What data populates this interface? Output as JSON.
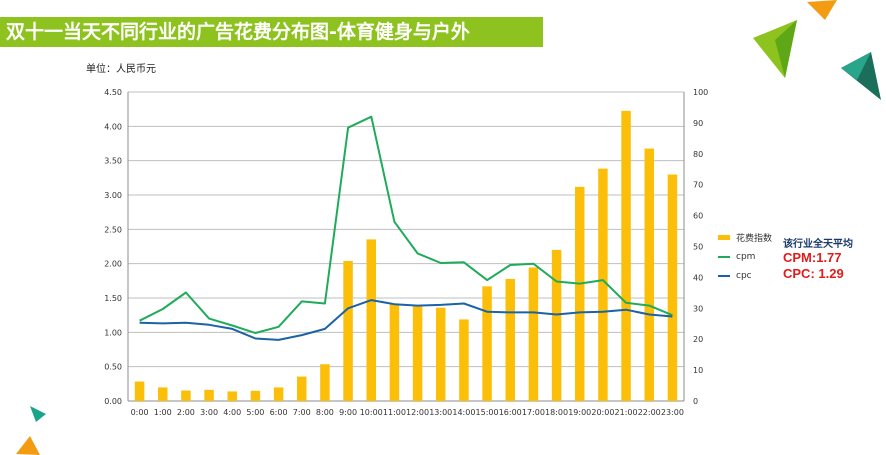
{
  "title": "双十一当天不同行业的广告花费分布图-体育健身与户外",
  "unit_label": "单位：人民币元",
  "average": {
    "title": "该行业全天平均",
    "cpm": "CPM:1.77",
    "cpc": "CPC: 1.29"
  },
  "colors": {
    "title_bg": "#8dc21f",
    "bar": "#fbbf09",
    "cpm": "#1fab5a",
    "cpc": "#1b62a6"
  },
  "chart_data": {
    "type": "bar",
    "categories": [
      "0:00",
      "1:00",
      "2:00",
      "3:00",
      "4:00",
      "5:00",
      "6:00",
      "7:00",
      "8:00",
      "9:00",
      "10:00",
      "11:00",
      "12:00",
      "13:00",
      "14:00",
      "15:00",
      "16:00",
      "17:00",
      "18:00",
      "19:00",
      "20:00",
      "21:00",
      "22:00",
      "23:00"
    ],
    "y_left": {
      "min": 0,
      "max": 4.5,
      "ticks": [
        "0.00",
        "0.50",
        "1.00",
        "1.50",
        "2.00",
        "2.50",
        "3.00",
        "3.50",
        "4.00",
        "4.50"
      ]
    },
    "y_right": {
      "min": 0,
      "max": 100,
      "ticks": [
        "0",
        "10",
        "20",
        "30",
        "40",
        "50",
        "60",
        "70",
        "80",
        "90",
        "100"
      ]
    },
    "grid": true,
    "legend_position": "right",
    "series": [
      {
        "name": "花费指数",
        "type": "bar",
        "axis": "right",
        "values": [
          6.3,
          4.4,
          3.4,
          3.6,
          3.1,
          3.3,
          4.4,
          7.9,
          11.9,
          45.3,
          52.3,
          31.4,
          30.6,
          30.2,
          26.4,
          37.1,
          39.5,
          43.2,
          48.9,
          69.3,
          75.2,
          93.9,
          81.7,
          73.3
        ]
      },
      {
        "name": "cpm",
        "type": "line",
        "axis": "left",
        "values": [
          1.17,
          1.34,
          1.58,
          1.2,
          1.1,
          0.99,
          1.08,
          1.45,
          1.42,
          3.98,
          4.14,
          2.61,
          2.15,
          2.01,
          2.02,
          1.76,
          1.98,
          2.0,
          1.74,
          1.71,
          1.76,
          1.43,
          1.39,
          1.25
        ]
      },
      {
        "name": "cpc",
        "type": "line",
        "axis": "left",
        "values": [
          1.14,
          1.13,
          1.14,
          1.11,
          1.05,
          0.91,
          0.89,
          0.96,
          1.05,
          1.35,
          1.47,
          1.41,
          1.39,
          1.4,
          1.42,
          1.3,
          1.29,
          1.29,
          1.26,
          1.29,
          1.3,
          1.33,
          1.26,
          1.23
        ]
      }
    ]
  }
}
